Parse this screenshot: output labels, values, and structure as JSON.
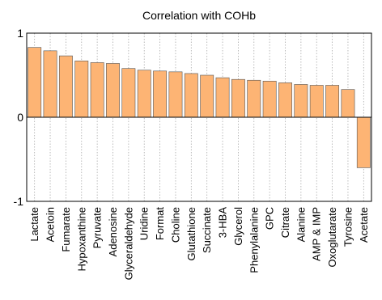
{
  "chart_data": {
    "type": "bar",
    "title": "Correlation with COHb",
    "xlabel": "",
    "ylabel": "",
    "ylim": [
      -1,
      1
    ],
    "yticks": [
      -1,
      0,
      1
    ],
    "grid": "vertical dotted",
    "categories": [
      "Lactate",
      "Acetoin",
      "Fumarate",
      "Hypoxanthine",
      "Pyruvate",
      "Adenosine",
      "Glyceraldehyde",
      "Uridine",
      "Format",
      "Choline",
      "Glutathione",
      "Succinate",
      "3-HBA",
      "Glycerol",
      "Phenylalanine",
      "GPC",
      "Citrate",
      "Alanine",
      "AMP & IMP",
      "Oxoglutarate",
      "Tyrosine",
      "Acetate"
    ],
    "values": [
      0.83,
      0.79,
      0.73,
      0.67,
      0.65,
      0.64,
      0.58,
      0.56,
      0.55,
      0.54,
      0.52,
      0.5,
      0.47,
      0.45,
      0.44,
      0.43,
      0.41,
      0.39,
      0.38,
      0.38,
      0.33,
      -0.6
    ],
    "colors": {
      "bar": "#FDB474",
      "bar_edge": "#555555",
      "grid": "#AAAAAA",
      "axis": "#000000"
    }
  }
}
